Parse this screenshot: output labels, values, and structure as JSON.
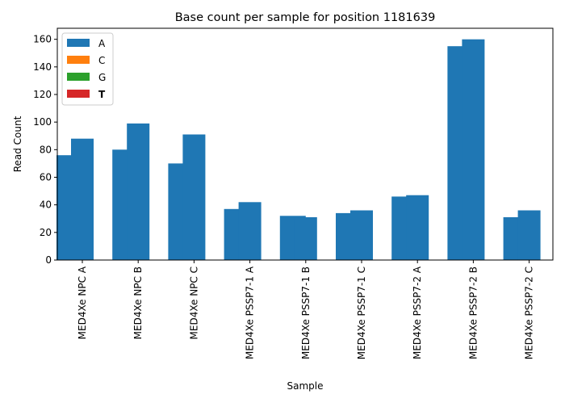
{
  "chart_data": {
    "type": "bar",
    "title": "Base count per sample for position 1181639",
    "xlabel": "Sample",
    "ylabel": "Read Count",
    "ylim": [
      0,
      168
    ],
    "yticks": [
      0,
      20,
      40,
      60,
      80,
      100,
      120,
      140,
      160
    ],
    "grid": false,
    "legend_position": "top-left",
    "categories": [
      "MED4Xe NPC A",
      "MED4Xe NPC B",
      "MED4Xe NPC C",
      "MED4Xe PSSP7-1 A",
      "MED4Xe PSSP7-1 B",
      "MED4Xe PSSP7-1 C",
      "MED4Xe PSSP7-2 A",
      "MED4Xe PSSP7-2 B",
      "MED4Xe PSSP7-2 C"
    ],
    "bar_pairs": [
      [
        76,
        88
      ],
      [
        80,
        99
      ],
      [
        70,
        91
      ],
      [
        37,
        42
      ],
      [
        32,
        31
      ],
      [
        34,
        36
      ],
      [
        46,
        47
      ],
      [
        155,
        160
      ],
      [
        31,
        36
      ]
    ],
    "series": [
      {
        "name": "A",
        "color": "#1f77b4"
      },
      {
        "name": "C",
        "color": "#ff7f0e"
      },
      {
        "name": "G",
        "color": "#2ca02c"
      },
      {
        "name": "T",
        "color": "#d62728"
      }
    ]
  }
}
